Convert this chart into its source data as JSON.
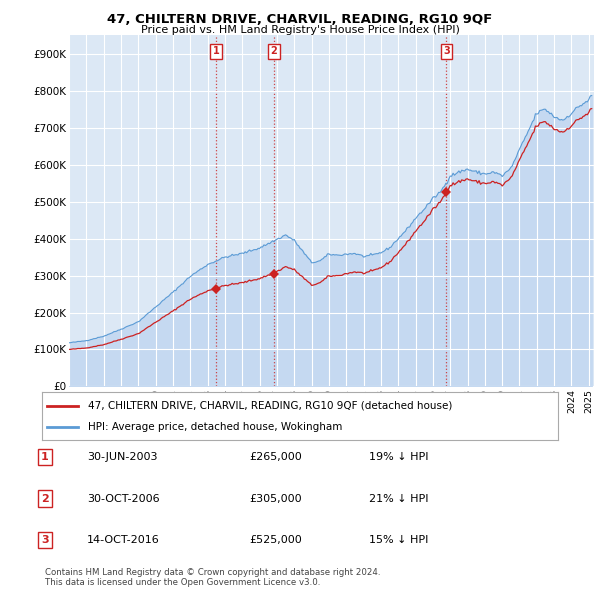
{
  "title": "47, CHILTERN DRIVE, CHARVIL, READING, RG10 9QF",
  "subtitle": "Price paid vs. HM Land Registry's House Price Index (HPI)",
  "ylim": [
    0,
    950000
  ],
  "yticks": [
    0,
    100000,
    200000,
    300000,
    400000,
    500000,
    600000,
    700000,
    800000,
    900000
  ],
  "ytick_labels": [
    "£0",
    "£100K",
    "£200K",
    "£300K",
    "£400K",
    "£500K",
    "£600K",
    "£700K",
    "£800K",
    "£900K"
  ],
  "background_color": "#ffffff",
  "plot_bg_color": "#dce8f5",
  "grid_color": "#ffffff",
  "hpi_color": "#5b9bd5",
  "hpi_fill_color": "#c5d9f1",
  "price_color": "#cc2222",
  "vline_color": "#cc3333",
  "transactions": [
    {
      "label": "1",
      "date_x": 2003.5,
      "price": 265000,
      "pct": "19% ↓ HPI",
      "date_str": "30-JUN-2003"
    },
    {
      "label": "2",
      "date_x": 2006.83,
      "price": 305000,
      "pct": "21% ↓ HPI",
      "date_str": "30-OCT-2006"
    },
    {
      "label": "3",
      "date_x": 2016.78,
      "price": 525000,
      "pct": "15% ↓ HPI",
      "date_str": "14-OCT-2016"
    }
  ],
  "legend_line1": "47, CHILTERN DRIVE, CHARVIL, READING, RG10 9QF (detached house)",
  "legend_line2": "HPI: Average price, detached house, Wokingham",
  "footnote": "Contains HM Land Registry data © Crown copyright and database right 2024.\nThis data is licensed under the Open Government Licence v3.0.",
  "xmin": 1995.0,
  "xmax": 2025.3
}
